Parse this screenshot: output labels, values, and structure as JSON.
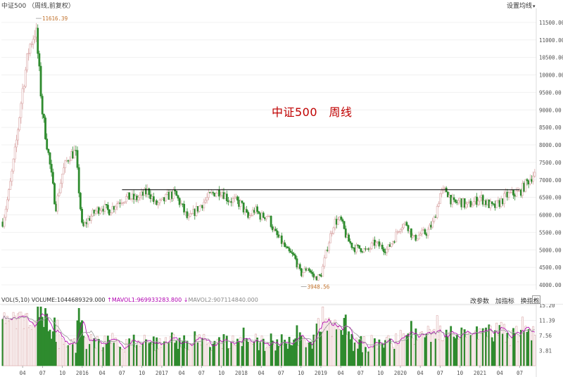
{
  "header": {
    "title": "中证500 （周线,前复权）",
    "settings_label": "设置均线",
    "settings_caret": "▾"
  },
  "annotation": "中证500　周线",
  "volume_header": {
    "label": "VOL(5,10)",
    "volume": "VOLUME:1044689329.000",
    "arrow_up": "↑",
    "mavol1": "MAVOL1:969933283.800",
    "mavol2": "MAVOL2:907114840.000",
    "arrow_down": "↓",
    "buttons": [
      "改参数",
      "加指标",
      "换指标"
    ],
    "close": "×"
  },
  "colors": {
    "up": "#d9a5a5",
    "down": "#2e8b2e",
    "ma1": "#b000b0",
    "ma2": "#999999",
    "resistance": "#000000",
    "annotation": "#c00000",
    "grid": "#f0f0f0"
  },
  "chart_data": [
    {
      "type": "candlestick",
      "title": "中证500",
      "period": "weekly",
      "ylim": [
        3900,
        11900
      ],
      "y_ticks": [
        4000,
        4500,
        5000,
        5500,
        6000,
        6500,
        7000,
        7500,
        8000,
        8500,
        9000,
        9500,
        10000,
        10500,
        11000,
        11500
      ],
      "y_tick_labels": [
        "4000.00",
        "4500.00",
        "5000.00",
        "5500.00",
        "6000.00",
        "6500.00",
        "7000.00",
        "7500.00",
        "8000.00",
        "8500.00",
        "9000.00",
        "9500.00",
        "10000.00",
        "10500.00",
        "11000.00",
        "11500.00"
      ],
      "annotations": [
        {
          "label": "11616.39",
          "value": 11616.39,
          "date": "2015-06"
        },
        {
          "label": "3948.56",
          "value": 3948.56,
          "date": "2018-10"
        }
      ],
      "resistance_line": {
        "value": 6720,
        "from": "2016-07",
        "to": "2021-07"
      },
      "series_close": [
        [
          "2015-01",
          5800
        ],
        [
          "2015-02",
          6700
        ],
        [
          "2015-03",
          8000
        ],
        [
          "2015-04",
          9600
        ],
        [
          "2015-05",
          10800
        ],
        [
          "2015-06",
          11300
        ],
        [
          "2015-07",
          8900
        ],
        [
          "2015-08",
          7600
        ],
        [
          "2015-09",
          6200
        ],
        [
          "2015-10",
          7200
        ],
        [
          "2015-11",
          7700
        ],
        [
          "2015-12",
          7800
        ],
        [
          "2016-01",
          5600
        ],
        [
          "2016-02",
          5900
        ],
        [
          "2016-03",
          6100
        ],
        [
          "2016-04",
          6250
        ],
        [
          "2016-05",
          6100
        ],
        [
          "2016-06",
          6300
        ],
        [
          "2016-07",
          6450
        ],
        [
          "2016-08",
          6500
        ],
        [
          "2016-09",
          6450
        ],
        [
          "2016-10",
          6550
        ],
        [
          "2016-11",
          6700
        ],
        [
          "2016-12",
          6300
        ],
        [
          "2017-01",
          6350
        ],
        [
          "2017-02",
          6550
        ],
        [
          "2017-03",
          6600
        ],
        [
          "2017-04",
          6250
        ],
        [
          "2017-05",
          5850
        ],
        [
          "2017-06",
          6100
        ],
        [
          "2017-07",
          6300
        ],
        [
          "2017-08",
          6500
        ],
        [
          "2017-09",
          6650
        ],
        [
          "2017-10",
          6700
        ],
        [
          "2017-11",
          6450
        ],
        [
          "2017-12",
          6400
        ],
        [
          "2018-01",
          6300
        ],
        [
          "2018-02",
          5900
        ],
        [
          "2018-03",
          6150
        ],
        [
          "2018-04",
          5950
        ],
        [
          "2018-05",
          6000
        ],
        [
          "2018-06",
          5500
        ],
        [
          "2018-07",
          5250
        ],
        [
          "2018-08",
          4950
        ],
        [
          "2018-09",
          4800
        ],
        [
          "2018-10",
          4300
        ],
        [
          "2018-11",
          4500
        ],
        [
          "2018-12",
          4200
        ],
        [
          "2019-01",
          4250
        ],
        [
          "2019-02",
          5100
        ],
        [
          "2019-03",
          5800
        ],
        [
          "2019-04",
          5850
        ],
        [
          "2019-05",
          5300
        ],
        [
          "2019-06",
          5050
        ],
        [
          "2019-07",
          5050
        ],
        [
          "2019-08",
          4950
        ],
        [
          "2019-09",
          5200
        ],
        [
          "2019-10",
          5100
        ],
        [
          "2019-11",
          5000
        ],
        [
          "2019-12",
          5300
        ],
        [
          "2020-01",
          5700
        ],
        [
          "2020-02",
          5750
        ],
        [
          "2020-03",
          5300
        ],
        [
          "2020-04",
          5450
        ],
        [
          "2020-05",
          5500
        ],
        [
          "2020-06",
          5800
        ],
        [
          "2020-07",
          6600
        ],
        [
          "2020-08",
          6700
        ],
        [
          "2020-09",
          6300
        ],
        [
          "2020-10",
          6400
        ],
        [
          "2020-11",
          6250
        ],
        [
          "2020-12",
          6350
        ],
        [
          "2021-01",
          6500
        ],
        [
          "2021-02",
          6350
        ],
        [
          "2021-03",
          6200
        ],
        [
          "2021-04",
          6350
        ],
        [
          "2021-05",
          6550
        ],
        [
          "2021-06",
          6600
        ],
        [
          "2021-07",
          6650
        ],
        [
          "2021-08",
          6900
        ],
        [
          "2021-09",
          7150
        ]
      ],
      "x_tick_labels": [
        "04",
        "07",
        "10",
        "2016",
        "04",
        "07",
        "10",
        "2017",
        "04",
        "07",
        "10",
        "2018",
        "04",
        "07",
        "10",
        "2019",
        "04",
        "07",
        "10",
        "2020",
        "04",
        "07",
        "10",
        "2021",
        "04",
        "07"
      ]
    },
    {
      "type": "bar",
      "title": "VOL(5,10)",
      "unit_note": "right-axis values",
      "ylim": [
        0,
        15.2
      ],
      "y_tick_labels": [
        "15.20",
        "11.39",
        "7.56",
        "3.81"
      ],
      "y_ticks": [
        15.2,
        11.39,
        7.56,
        3.81
      ],
      "series": [
        {
          "name": "MAVOL1",
          "note": "5-period moving average"
        },
        {
          "name": "MAVOL2",
          "note": "10-period moving average"
        }
      ]
    }
  ]
}
